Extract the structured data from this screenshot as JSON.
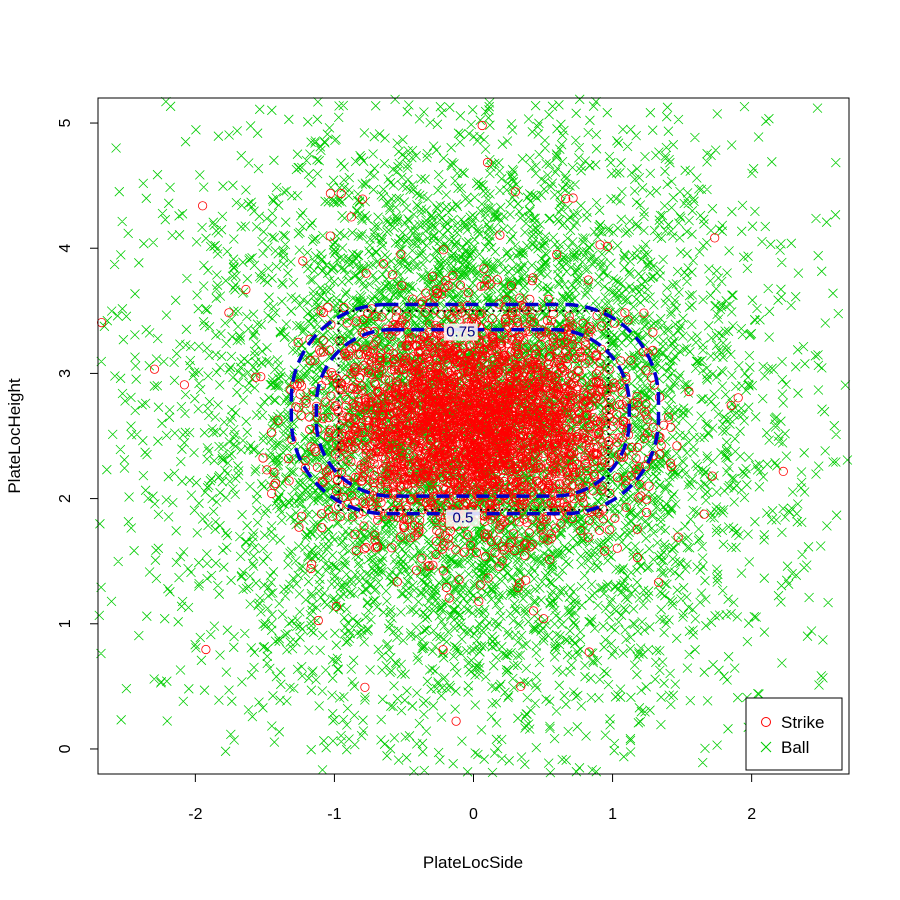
{
  "chart_data": {
    "type": "scatter",
    "title": "",
    "xlabel": "PlateLocSide",
    "ylabel": "PlateLocHeight",
    "xlim": [
      -2.7,
      2.7
    ],
    "ylim": [
      -0.2,
      5.2
    ],
    "x_ticks": [
      -2,
      -1,
      0,
      1,
      2
    ],
    "y_ticks": [
      0,
      1,
      2,
      3,
      4,
      5
    ],
    "grid": false,
    "legend_position": "bottom-right",
    "series": [
      {
        "name": "Strike",
        "marker": "open-circle",
        "color": "#ff0000",
        "distribution": "dense cluster centered near (0, 2.6), spanning roughly x -1.3..1.4 and y 1.8..3.6, with sparse outliers across the plot",
        "count_estimate": 3000,
        "center": [
          0,
          2.6
        ],
        "spread": [
          0.52,
          0.42
        ]
      },
      {
        "name": "Ball",
        "marker": "x-cross",
        "color": "#00cc00",
        "distribution": "broad cloud centered near (0, 2.6) covering the entire plot area, sparser toward edges",
        "count_estimate": 7000,
        "center": [
          0,
          2.6
        ],
        "spread": [
          1.05,
          1.2
        ]
      }
    ],
    "contours": [
      {
        "level_label": "0.75",
        "color": "#0000cc",
        "style": "dashed",
        "x_range": [
          -1.13,
          1.12
        ],
        "y_range": [
          2.02,
          3.35
        ]
      },
      {
        "level_label": "0.5",
        "color": "#0000cc",
        "style": "dashed",
        "x_range": [
          -1.31,
          1.33
        ],
        "y_range": [
          1.88,
          3.55
        ]
      }
    ],
    "strike_zone_box": {
      "style": "dotted",
      "color": "#000000",
      "x_range": [
        -0.97,
        0.97
      ],
      "y_range": [
        1.91,
        3.5
      ]
    },
    "legend": [
      {
        "label": "Strike",
        "marker": "open-circle",
        "color": "#ff0000"
      },
      {
        "label": "Ball",
        "marker": "x-cross",
        "color": "#00cc00"
      }
    ]
  }
}
